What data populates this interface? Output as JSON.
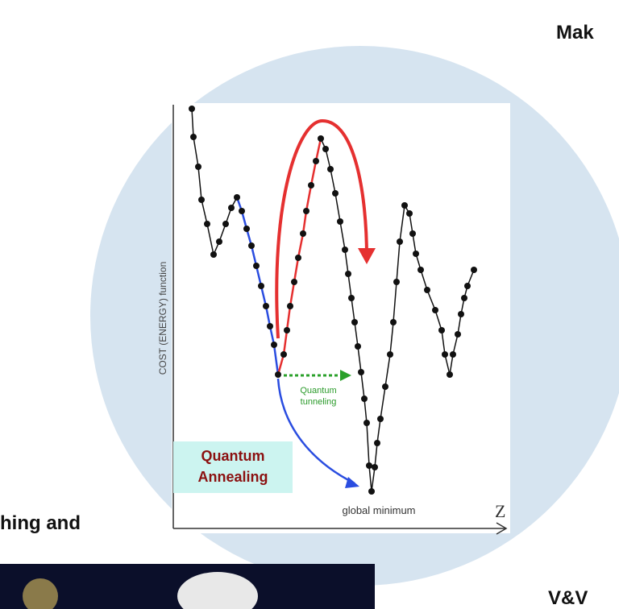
{
  "header": {
    "fragment_right": "Mak"
  },
  "diagram": {
    "y_axis_label": "COST (ENERGY) function",
    "x_axis_label": "Z",
    "tunneling_label": "Quantum tunneling",
    "annealing_label": "Quantum Annealing",
    "minimum_label": "global minimum"
  },
  "footer": {
    "fragment_left": "hing and",
    "fragment_right": "V&V"
  }
}
